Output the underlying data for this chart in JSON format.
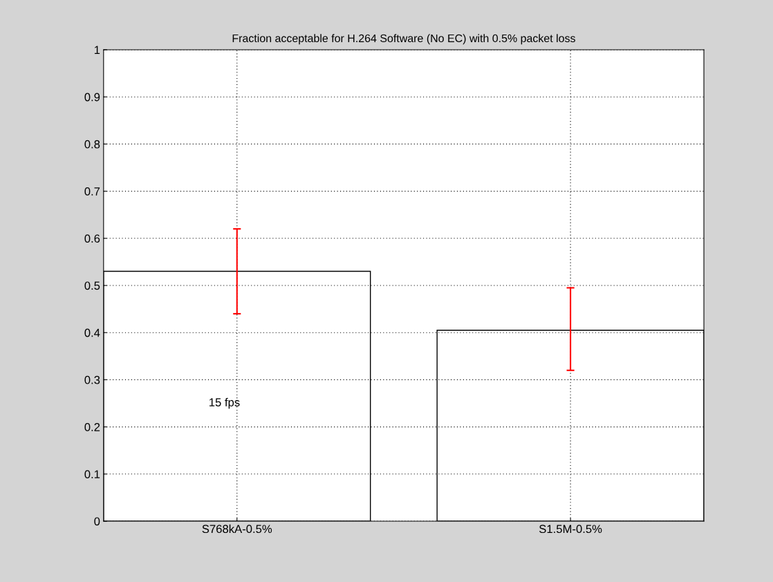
{
  "chart_data": {
    "type": "bar",
    "title": "Fraction acceptable for H.264 Software (No EC) with 0.5% packet loss",
    "categories": [
      "S768kA-0.5%",
      "S1.5M-0.5%"
    ],
    "series": [
      {
        "color": "#000000",
        "values": [
          0.53,
          0.405
        ],
        "errors": [
          [
            0.44,
            0.62
          ],
          [
            0.32,
            0.495
          ]
        ]
      }
    ],
    "ylim": [
      0,
      1
    ],
    "yticks": [
      0,
      0.1,
      0.2,
      0.3,
      0.4,
      0.5,
      0.6,
      0.7,
      0.8,
      0.9,
      1
    ],
    "grid": true,
    "annotations": [
      "15 fps"
    ]
  }
}
